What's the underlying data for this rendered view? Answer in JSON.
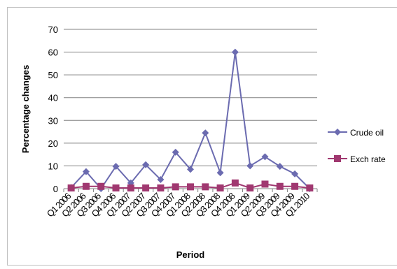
{
  "chart_data": {
    "type": "line",
    "xlabel": "Period",
    "ylabel": "Percentage changes",
    "ylim": [
      0,
      70
    ],
    "yticks": [
      0,
      10,
      20,
      30,
      40,
      50,
      60,
      70
    ],
    "grid": true,
    "legend_position": "right",
    "categories": [
      "Q1 2006",
      "Q2 2006",
      "Q3 2006",
      "Q4 2006",
      "Q1 2007",
      "Q2 2007",
      "Q3 2007",
      "Q4 2007",
      "Q1 2008",
      "Q2 2008",
      "Q3 2008",
      "Q4 2008",
      "Q1 2009",
      "Q2 2009",
      "Q3 2009",
      "Q4 2009",
      "Q1 2010"
    ],
    "xtick_labels": [
      "Q1 2006",
      "Q2 2006",
      "Q3 2006",
      "Q4 2006",
      "Q1 2007",
      "Q2 2007",
      "Q3 2007",
      "Q4 2007",
      "Q1 2008",
      "Q2 2008",
      "Q3 2008",
      "Q4 2008",
      "Q1 2009",
      "Q2 2009",
      "Q3 2009",
      "Q4 2009",
      "Q1 2010"
    ],
    "series": [
      {
        "name": "Crude oil",
        "color": "#6b6bb0",
        "marker": "diamond",
        "values": [
          0.5,
          7.5,
          0,
          9.8,
          2.5,
          10.5,
          4,
          16,
          8.5,
          24.5,
          7,
          60,
          10,
          14,
          9.8,
          6.5,
          0
        ]
      },
      {
        "name": "Exch rate",
        "color": "#a03870",
        "marker": "square",
        "values": [
          0.3,
          1,
          1,
          0.3,
          0.3,
          0.3,
          0.3,
          0.8,
          0.8,
          0.8,
          0.3,
          2.5,
          0.3,
          2,
          1,
          1,
          0.3
        ]
      }
    ]
  }
}
